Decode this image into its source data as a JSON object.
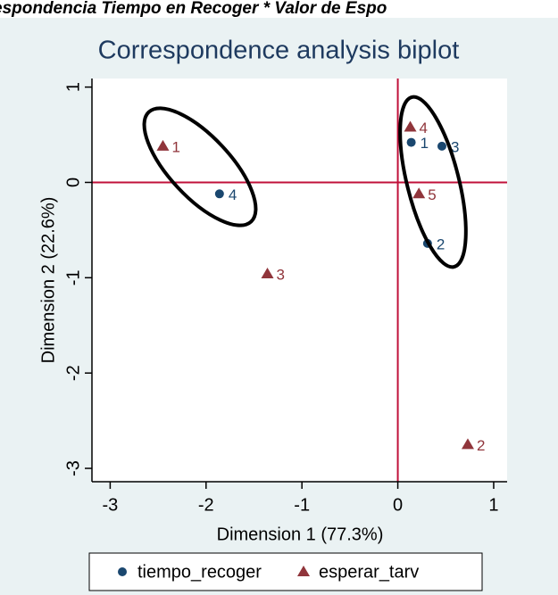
{
  "header": {
    "text": "espondencia Tiempo en Recoger  * Valor de Espo"
  },
  "chart_data": {
    "type": "scatter",
    "title": "Correspondence analysis biplot",
    "x_label": "Dimension 1 (77.3%)",
    "y_label": "Dimension 2 (22.6%)",
    "xlim": [
      -3.19,
      1.14
    ],
    "ylim": [
      -3.14,
      1.09
    ],
    "xticks": [
      -3,
      -2,
      -1,
      0,
      1
    ],
    "yticks": [
      -3,
      -2,
      -1,
      0,
      1
    ],
    "reference_lines": {
      "x": 0,
      "y": 0,
      "color": "#c0103a"
    },
    "legend": "bottom",
    "series": [
      {
        "name": "tiempo_recoger",
        "color": "#1a476f",
        "marker": "circle",
        "x": [
          0.14,
          0.31,
          0.46,
          -1.86
        ],
        "values": [
          0.42,
          -0.64,
          0.38,
          -0.12
        ],
        "labels": [
          "1",
          "2",
          "3",
          "4"
        ]
      },
      {
        "name": "esperar_tarv",
        "color": "#90353b",
        "marker": "triangle",
        "x": [
          -2.45,
          0.73,
          -1.36,
          0.13,
          0.22
        ],
        "values": [
          0.38,
          -2.75,
          -0.96,
          0.58,
          -0.12
        ],
        "labels": [
          "1",
          "2",
          "3",
          "4",
          "5"
        ]
      }
    ]
  }
}
